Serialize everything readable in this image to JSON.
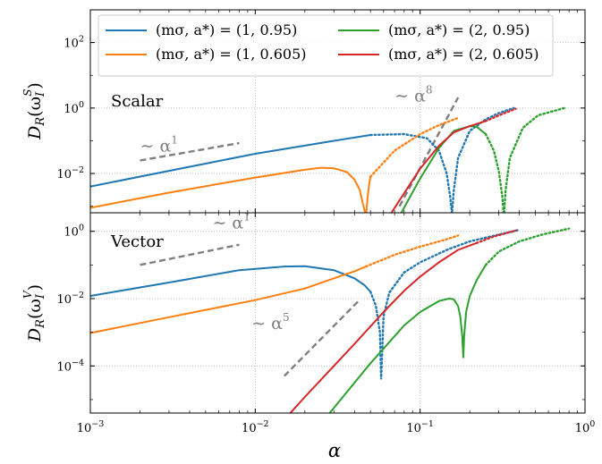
{
  "chart_data": {
    "type": "line",
    "xscale": "log",
    "xlim": [
      0.001,
      1.0
    ],
    "xlabel": "α",
    "xticks": [
      {
        "value": 0.001,
        "base": "10",
        "exp": "−3"
      },
      {
        "value": 0.01,
        "base": "10",
        "exp": "−2"
      },
      {
        "value": 0.1,
        "base": "10",
        "exp": "−1"
      },
      {
        "value": 1.0,
        "base": "10",
        "exp": "0"
      }
    ],
    "grid": "major-dotted",
    "legend": {
      "placement": "top (upper panel), 2 columns",
      "entries": [
        {
          "label": "(mσ, a*) = (1, 0.95)",
          "color": "#1f77b4"
        },
        {
          "label": "(mσ, a*) = (1, 0.605)",
          "color": "#ff7f0e"
        },
        {
          "label": "(mσ, a*) = (2, 0.95)",
          "color": "#2ca02c"
        },
        {
          "label": "(mσ, a*) = (2, 0.605)",
          "color": "#d62728"
        }
      ]
    },
    "panels": [
      {
        "id": "scalar",
        "panel_label": "Scalar",
        "ylabel": "D_R(ω_I^S)",
        "yscale": "log",
        "ylim_log10": [
          -3.2,
          3.0
        ],
        "yticks": [
          {
            "value": 0.01,
            "base": "10",
            "exp": "−2"
          },
          {
            "value": 1,
            "base": "10",
            "exp": "0"
          },
          {
            "value": 100,
            "base": "10",
            "exp": "2"
          }
        ],
        "reference_slopes": [
          {
            "label": "∼ α¹",
            "label_parts": [
              "∼ α",
              "1"
            ],
            "from": [
              0.002,
              0.025
            ],
            "to": [
              0.008,
              0.085
            ],
            "color": "#7f7f7f"
          },
          {
            "label": "∼ α⁸",
            "label_parts": [
              "∼ α",
              "8"
            ],
            "from": [
              0.075,
              0.001
            ],
            "to": [
              0.17,
              2.1
            ],
            "color": "#7f7f7f"
          }
        ],
        "series": [
          {
            "color": "#1f77b4",
            "solid": [
              [
                0.001,
                0.004
              ],
              [
                0.005,
                0.02
              ],
              [
                0.01,
                0.04
              ],
              [
                0.03,
                0.1
              ],
              [
                0.05,
                0.15
              ]
            ],
            "dotted": [
              [
                0.05,
                0.15
              ],
              [
                0.08,
                0.16
              ],
              [
                0.11,
                0.12
              ],
              [
                0.13,
                0.05
              ],
              [
                0.145,
                0.01
              ],
              [
                0.152,
                0.002
              ],
              [
                0.156,
                0.0006
              ],
              [
                0.16,
                0.003
              ],
              [
                0.17,
                0.03
              ],
              [
                0.2,
                0.2
              ],
              [
                0.25,
                0.45
              ],
              [
                0.3,
                0.7
              ],
              [
                0.37,
                1.0
              ]
            ]
          },
          {
            "color": "#ff7f0e",
            "solid": [
              [
                0.001,
                0.0009
              ],
              [
                0.003,
                0.0026
              ],
              [
                0.01,
                0.0075
              ],
              [
                0.02,
                0.013
              ],
              [
                0.025,
                0.015
              ],
              [
                0.03,
                0.0145
              ],
              [
                0.036,
                0.011
              ],
              [
                0.04,
                0.0065
              ],
              [
                0.043,
                0.0032
              ],
              [
                0.045,
                0.0012
              ],
              [
                0.047,
                0.0005
              ],
              [
                0.048,
                0.0018
              ],
              [
                0.049,
                0.0045
              ],
              [
                0.05,
                0.008
              ]
            ],
            "dotted": [
              [
                0.05,
                0.008
              ],
              [
                0.07,
                0.05
              ],
              [
                0.1,
                0.16
              ],
              [
                0.13,
                0.3
              ],
              [
                0.17,
                0.5
              ]
            ]
          },
          {
            "color": "#2ca02c",
            "solid": [
              [
                0.075,
                0.0005
              ],
              [
                0.1,
                0.007
              ],
              [
                0.13,
                0.06
              ],
              [
                0.16,
                0.2
              ],
              [
                0.2,
                0.28
              ],
              [
                0.22,
                0.27
              ],
              [
                0.25,
                0.16
              ]
            ],
            "dotted": [
              [
                0.25,
                0.16
              ],
              [
                0.28,
                0.05
              ],
              [
                0.3,
                0.012
              ],
              [
                0.315,
                0.002
              ],
              [
                0.322,
                0.0005
              ],
              [
                0.33,
                0.003
              ],
              [
                0.35,
                0.03
              ],
              [
                0.42,
                0.25
              ],
              [
                0.52,
                0.6
              ],
              [
                0.75,
                1.0
              ]
            ]
          },
          {
            "color": "#d62728",
            "solid": [
              [
                0.065,
                0.0005
              ],
              [
                0.1,
                0.014
              ],
              [
                0.13,
                0.07
              ],
              [
                0.16,
                0.18
              ],
              [
                0.2,
                0.28
              ],
              [
                0.25,
                0.4
              ]
            ],
            "dotted": [
              [
                0.25,
                0.4
              ],
              [
                0.3,
                0.6
              ],
              [
                0.38,
                0.95
              ]
            ]
          }
        ]
      },
      {
        "id": "vector",
        "panel_label": "Vector",
        "ylabel": "D_R(ω_I^V)",
        "yscale": "log",
        "ylim_log10": [
          -5.4,
          0.55
        ],
        "yticks": [
          {
            "value": 0.0001,
            "base": "10",
            "exp": "−4"
          },
          {
            "value": 0.01,
            "base": "10",
            "exp": "−2"
          },
          {
            "value": 1,
            "base": "10",
            "exp": "0"
          }
        ],
        "reference_slopes": [
          {
            "label": "∼ α¹",
            "label_parts": [
              "∼ α",
              "1"
            ],
            "from": [
              0.002,
              0.1
            ],
            "to": [
              0.008,
              0.4
            ],
            "color": "#7f7f7f"
          },
          {
            "label": "∼ α⁵",
            "label_parts": [
              "∼ α",
              "5"
            ],
            "from": [
              0.015,
              5e-05
            ],
            "to": [
              0.042,
              0.0082
            ],
            "color": "#7f7f7f"
          }
        ],
        "series": [
          {
            "color": "#1f77b4",
            "solid": [
              [
                0.001,
                0.012
              ],
              [
                0.003,
                0.03
              ],
              [
                0.008,
                0.07
              ],
              [
                0.015,
                0.09
              ],
              [
                0.02,
                0.092
              ],
              [
                0.03,
                0.07
              ],
              [
                0.04,
                0.04
              ],
              [
                0.046,
                0.025
              ],
              [
                0.05,
                0.016
              ]
            ],
            "dotted": [
              [
                0.05,
                0.016
              ],
              [
                0.054,
                0.006
              ],
              [
                0.057,
                0.001
              ],
              [
                0.058,
                4e-05
              ],
              [
                0.06,
                0.003
              ],
              [
                0.065,
                0.015
              ],
              [
                0.08,
                0.06
              ],
              [
                0.1,
                0.12
              ],
              [
                0.15,
                0.3
              ],
              [
                0.2,
                0.5
              ],
              [
                0.3,
                0.8
              ],
              [
                0.4,
                1.1
              ]
            ]
          },
          {
            "color": "#ff7f0e",
            "solid": [
              [
                0.001,
                0.00095
              ],
              [
                0.003,
                0.0028
              ],
              [
                0.01,
                0.009
              ],
              [
                0.02,
                0.02
              ],
              [
                0.03,
                0.04
              ],
              [
                0.04,
                0.065
              ],
              [
                0.047,
                0.09
              ]
            ],
            "dotted": [
              [
                0.047,
                0.09
              ],
              [
                0.07,
                0.2
              ],
              [
                0.1,
                0.35
              ],
              [
                0.14,
                0.55
              ],
              [
                0.17,
                0.75
              ]
            ]
          },
          {
            "color": "#2ca02c",
            "solid": [
              [
                0.027,
                3e-06
              ],
              [
                0.05,
                0.00012
              ],
              [
                0.08,
                0.0016
              ],
              [
                0.1,
                0.004
              ],
              [
                0.13,
                0.0085
              ],
              [
                0.15,
                0.01
              ],
              [
                0.16,
                0.0095
              ],
              [
                0.17,
                0.006
              ],
              [
                0.175,
                0.003
              ],
              [
                0.18,
                0.0008
              ],
              [
                0.183,
                0.00018
              ],
              [
                0.185,
                0.0008
              ],
              [
                0.19,
                0.004
              ],
              [
                0.2,
                0.012
              ],
              [
                0.22,
                0.035
              ],
              [
                0.25,
                0.1
              ]
            ],
            "dotted": [
              [
                0.25,
                0.1
              ],
              [
                0.3,
                0.25
              ],
              [
                0.4,
                0.5
              ],
              [
                0.55,
                0.8
              ],
              [
                0.8,
                1.2
              ]
            ]
          },
          {
            "color": "#d62728",
            "solid": [
              [
                0.0155,
                3e-06
              ],
              [
                0.02,
                1.2e-05
              ],
              [
                0.04,
                0.00045
              ],
              [
                0.06,
                0.004
              ],
              [
                0.08,
                0.017
              ],
              [
                0.1,
                0.045
              ],
              [
                0.13,
                0.12
              ],
              [
                0.17,
                0.28
              ],
              [
                0.22,
                0.45
              ]
            ],
            "dotted": [
              [
                0.22,
                0.45
              ],
              [
                0.28,
                0.7
              ],
              [
                0.38,
                1.05
              ]
            ]
          }
        ]
      }
    ]
  }
}
